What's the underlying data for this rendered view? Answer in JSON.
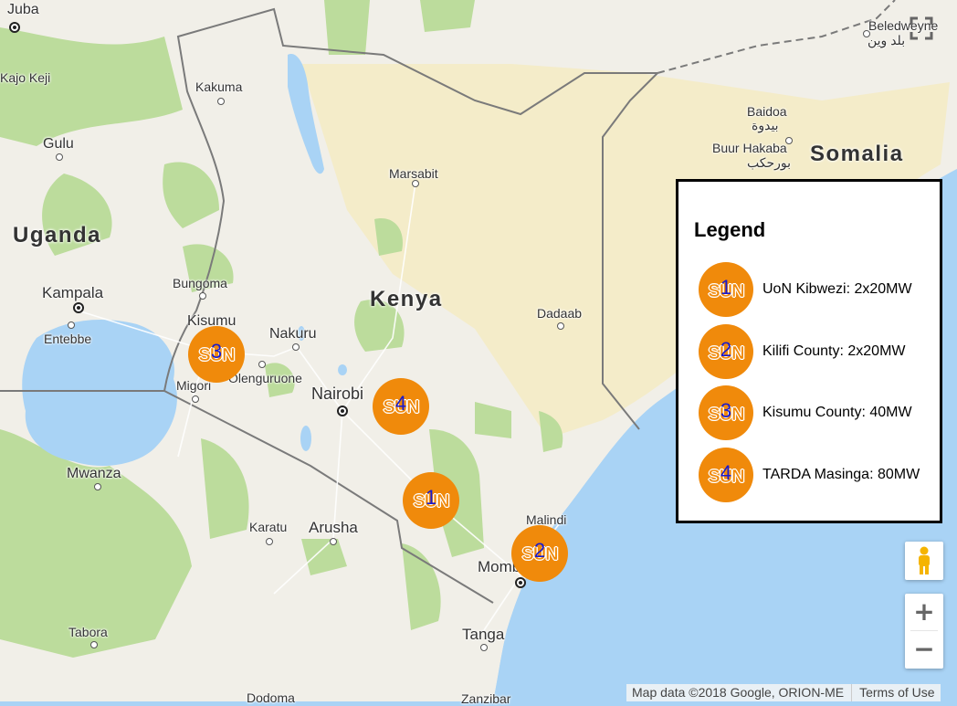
{
  "map": {
    "countries": [
      "Somalia",
      "Uganda",
      "Kenya"
    ],
    "places": [
      "Juba",
      "Kajo Keji",
      "Kakuma",
      "Beledweyne",
      "بلد وين",
      "Baidoa",
      "بيدوة",
      "Buur Hakaba",
      "بورحكب",
      "Gulu",
      "Marsabit",
      "Bungoma",
      "Kampala",
      "Entebbe",
      "Kisumu",
      "Nakuru",
      "Olenguruone",
      "Migori",
      "Nairobi",
      "Dadaab",
      "Mwanza",
      "Karatu",
      "Arusha",
      "Malindi",
      "Mombasa",
      "Tanga",
      "Tabora",
      "Dodoma",
      "Zanzibar"
    ]
  },
  "markers": [
    {
      "num": "1",
      "brand": "SUN",
      "site": "UoN Kibwezi"
    },
    {
      "num": "2",
      "brand": "SUN",
      "site": "Kilifi County"
    },
    {
      "num": "3",
      "brand": "SUN",
      "site": "Kisumu County"
    },
    {
      "num": "4",
      "brand": "SUN",
      "site": "TARDA Masinga"
    }
  ],
  "legend": {
    "title": "Legend",
    "items": [
      {
        "num": "1",
        "brand": "SUN",
        "label": "UoN Kibwezi: 2x20MW"
      },
      {
        "num": "2",
        "brand": "SUN",
        "label": "Kilifi County: 2x20MW"
      },
      {
        "num": "3",
        "brand": "SUN",
        "label": "Kisumu County: 40MW"
      },
      {
        "num": "4",
        "brand": "SUN",
        "label": "TARDA Masinga: 80MW"
      }
    ]
  },
  "controls": {
    "zoom_in": "+",
    "zoom_out": "−",
    "icons": [
      "fullscreen-icon",
      "pegman-icon"
    ]
  },
  "attribution": {
    "map_data": "Map data ©2018 Google, ORION-ME",
    "terms": "Terms of Use"
  },
  "colors": {
    "land": "#f1efe8",
    "desert": "#f5ecc8",
    "forest": "#b9dc9a",
    "water": "#a9d3f5",
    "marker": "#f08a0b",
    "marker_number": "#1a1acc"
  }
}
